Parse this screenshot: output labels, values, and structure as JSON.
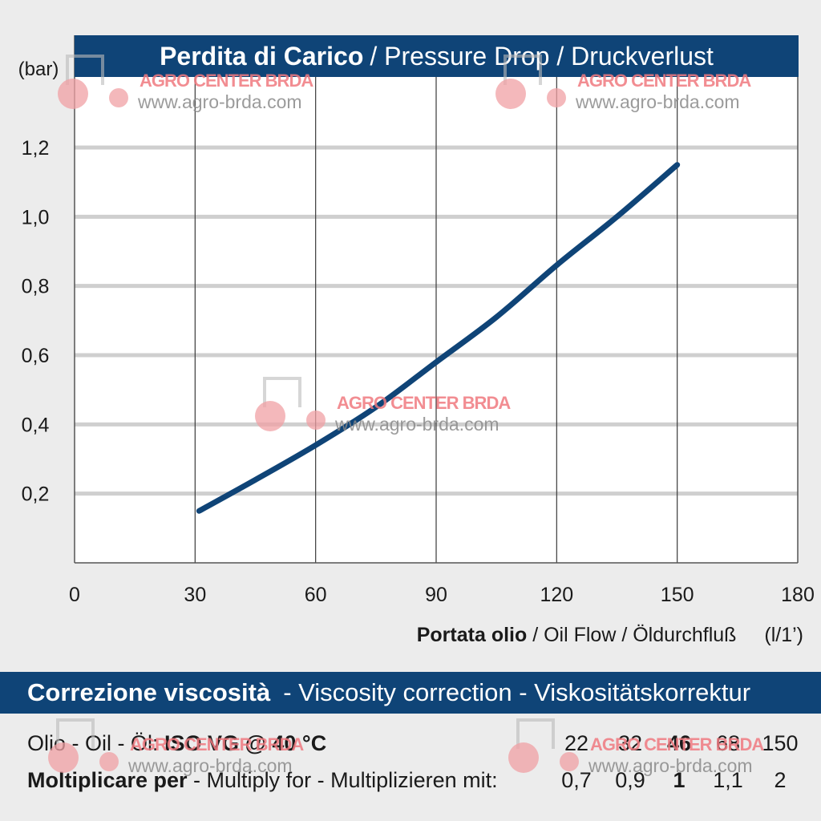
{
  "title": {
    "main": "Perdita di Carico",
    "rest": "/ Pressure Drop / Druckverlust"
  },
  "chart_data": {
    "type": "line",
    "ylabel": "(bar)",
    "xlabel_bold": "Portata olio",
    "xlabel_rest": "/ Oil Flow  / Öldurchfluß",
    "xunit": "(l/1’)",
    "xlim": [
      0,
      180
    ],
    "ylim": [
      0,
      1.4
    ],
    "xticks": [
      "0",
      "30",
      "60",
      "90",
      "120",
      "150",
      "180"
    ],
    "xtick_values": [
      0,
      30,
      60,
      90,
      120,
      150,
      180
    ],
    "yticks": [
      "0,2",
      "0,4",
      "0,6",
      "0,8",
      "1,0",
      "1,2"
    ],
    "ytick_values": [
      0.2,
      0.4,
      0.6,
      0.8,
      1.0,
      1.2
    ],
    "grid": true,
    "color": "#0f4477",
    "series": [
      {
        "x": [
          31,
          45,
          60,
          75,
          90,
          105,
          120,
          135,
          150
        ],
        "y": [
          0.15,
          0.24,
          0.34,
          0.45,
          0.58,
          0.71,
          0.86,
          1.0,
          1.15
        ]
      }
    ]
  },
  "viscosity": {
    "title_bold": "Correzione viscosità",
    "title_rest": "-  Viscosity correction  -  Viskositätskorrektur",
    "oil_label_plain": "Olio - Oil - Öl: ",
    "oil_label_bold": "ISO VG @ 40 °C",
    "multiply_bold": "Moltiplicare per",
    "multiply_rest": " - Multiply for - Multiplizieren mit:",
    "grades": [
      "22",
      "32",
      "46",
      "68",
      "150"
    ],
    "factors": [
      "0,7",
      "0,9",
      "1",
      "1,1",
      "2"
    ],
    "highlight_index": 2
  },
  "watermark": {
    "brand": "AGRO CENTER BRDA",
    "url": "www.agro-brda.com",
    "brand_color": "#f07a80"
  }
}
